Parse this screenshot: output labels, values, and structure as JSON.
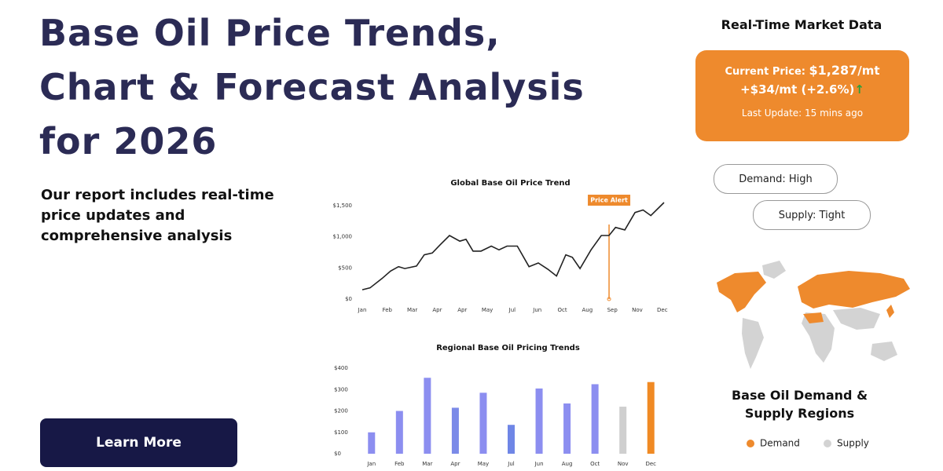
{
  "header": {
    "title_lines": [
      "Base Oil Price Trends,",
      "Chart & Forecast Analysis",
      "for 2026"
    ]
  },
  "intro": {
    "lines": [
      "Our report includes real-time",
      "price updates and",
      "comprehensive analysis"
    ]
  },
  "button": {
    "label": "Learn More"
  },
  "market": {
    "heading": "Real-Time Market Data",
    "price_label": "Current Price:",
    "price": "$1,287",
    "price_unit": "/mt",
    "change": "+$34/mt (+2.6%)",
    "arrow": "↑",
    "update": "Last Update: 15 mins ago"
  },
  "badges": [
    "Demand: High",
    "Supply: Tight"
  ],
  "map": {
    "title_lines": [
      "Base Oil Demand &",
      "Supply Regions"
    ],
    "legend": [
      {
        "name": "Demand",
        "color": "#ee8a2d"
      },
      {
        "name": "Supply",
        "color": "#d3d3d3"
      }
    ]
  },
  "chart_data": [
    {
      "type": "line",
      "title": "Global Base Oil Price Trend",
      "color": "#222222",
      "x": [
        0,
        0.31,
        0.79,
        1.13,
        1.45,
        1.7,
        2.17,
        2.48,
        2.8,
        3.11,
        3.49,
        3.9,
        4.15,
        4.43,
        4.75,
        5.16,
        5.47,
        5.79,
        6.2,
        6.67,
        7.04,
        7.42,
        7.77,
        8.14,
        8.4,
        8.71,
        9.15,
        9.56,
        9.87,
        10.13,
        10.5,
        10.91,
        11.23,
        11.54,
        12.07
      ],
      "values": [
        150,
        180,
        330,
        450,
        520,
        490,
        530,
        710,
        740,
        870,
        1020,
        930,
        960,
        770,
        770,
        850,
        790,
        850,
        850,
        520,
        580,
        480,
        370,
        710,
        670,
        490,
        790,
        1020,
        1020,
        1150,
        1110,
        1390,
        1430,
        1340,
        1550
      ],
      "xlim": [
        0,
        12.1
      ],
      "xticks": [
        {
          "value": 0,
          "label": "Jan"
        },
        {
          "value": 1,
          "label": "Feb"
        },
        {
          "value": 2,
          "label": "Mar"
        },
        {
          "value": 3,
          "label": "Apr"
        },
        {
          "value": 4,
          "label": "Apr"
        },
        {
          "value": 5,
          "label": "May"
        },
        {
          "value": 6,
          "label": "Jul"
        },
        {
          "value": 7,
          "label": "Jun"
        },
        {
          "value": 8,
          "label": "Oct"
        },
        {
          "value": 9,
          "label": "Aug"
        },
        {
          "value": 10,
          "label": "Sep"
        },
        {
          "value": 11,
          "label": "Nov"
        },
        {
          "value": 12,
          "label": "Dec"
        }
      ],
      "ylim": [
        0,
        1600
      ],
      "yticks": [
        {
          "value": 0,
          "label": "$0"
        },
        {
          "value": 500,
          "label": "$500"
        },
        {
          "value": 1000,
          "label": "$1,000"
        },
        {
          "value": 1500,
          "label": "$1,500"
        }
      ],
      "annotation": {
        "text": "Price Alert",
        "x": 9.87,
        "color": "#ee8a2d"
      }
    },
    {
      "type": "bar",
      "title": "Regional Base Oil Pricing Trends",
      "categories": [
        "Jan",
        "Feb",
        "Mar",
        "Apr",
        "May",
        "Jul",
        "Jun",
        "Aug",
        "Oct",
        "Nov",
        "Dec"
      ],
      "values": [
        100,
        200,
        355,
        215,
        285,
        135,
        305,
        235,
        325,
        220,
        335
      ],
      "colors": [
        "#8c8ef0",
        "#8c8ef0",
        "#8c8ef0",
        "#7b8ae8",
        "#8c8ef0",
        "#6f86e6",
        "#8c8ef0",
        "#8c8ef0",
        "#8c8ef0",
        "#cfcfcf",
        "#f08a24"
      ],
      "ylim": [
        0,
        400
      ],
      "yticks": [
        {
          "value": 0,
          "label": "$0"
        },
        {
          "value": 100,
          "label": "$100"
        },
        {
          "value": 200,
          "label": "$200"
        },
        {
          "value": 300,
          "label": "$300"
        },
        {
          "value": 400,
          "label": "$400"
        }
      ]
    }
  ]
}
